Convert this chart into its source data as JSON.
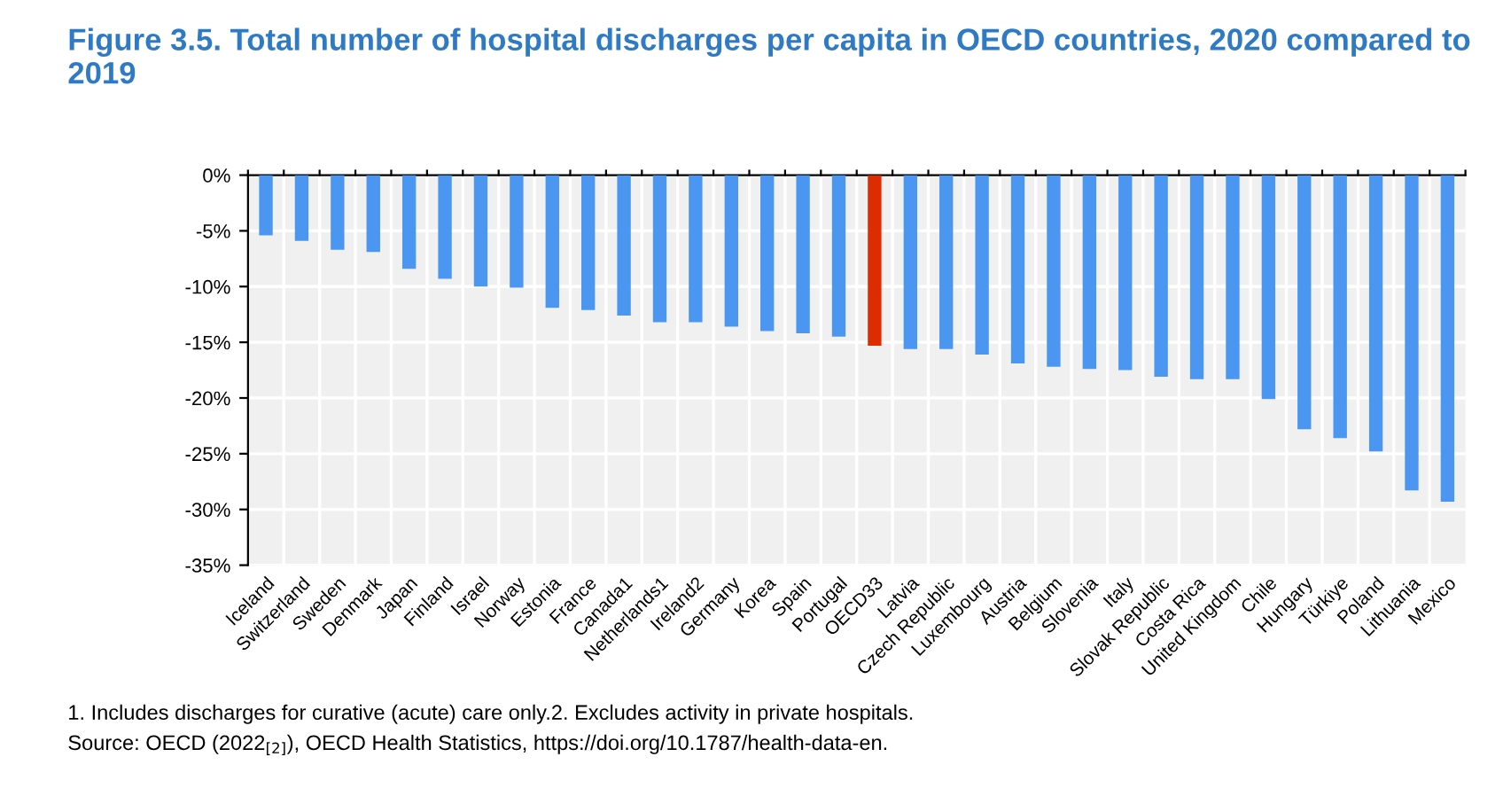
{
  "chart_data": {
    "type": "bar",
    "title": "Figure 3.5. Total number of hospital discharges per capita in OECD countries, 2020 compared to 2019",
    "categories": [
      "Iceland",
      "Switzerland",
      "Sweden",
      "Denmark",
      "Japan",
      "Finland",
      "Israel",
      "Norway",
      "Estonia",
      "France",
      "Canada1",
      "Netherlands1",
      "Ireland2",
      "Germany",
      "Korea",
      "Spain",
      "Portugal",
      "OECD33",
      "Latvia",
      "Czech Republic",
      "Luxembourg",
      "Austria",
      "Belgium",
      "Slovenia",
      "Italy",
      "Slovak Republic",
      "Costa Rica",
      "United Kingdom",
      "Chile",
      "Hungary",
      "Türkiye",
      "Poland",
      "Lithuania",
      "Mexico"
    ],
    "values": [
      -5.4,
      -5.9,
      -6.7,
      -6.9,
      -8.4,
      -9.3,
      -10.0,
      -10.1,
      -11.9,
      -12.1,
      -12.6,
      -13.2,
      -13.2,
      -13.6,
      -14.0,
      -14.2,
      -14.5,
      -15.3,
      -15.6,
      -15.6,
      -16.1,
      -16.9,
      -17.2,
      -17.4,
      -17.5,
      -18.1,
      -18.3,
      -18.3,
      -20.1,
      -22.8,
      -23.6,
      -24.8,
      -28.3,
      -29.3
    ],
    "colors": [
      "#4a96f0",
      "#4a96f0",
      "#4a96f0",
      "#4a96f0",
      "#4a96f0",
      "#4a96f0",
      "#4a96f0",
      "#4a96f0",
      "#4a96f0",
      "#4a96f0",
      "#4a96f0",
      "#4a96f0",
      "#4a96f0",
      "#4a96f0",
      "#4a96f0",
      "#4a96f0",
      "#4a96f0",
      "#dd2c00",
      "#4a96f0",
      "#4a96f0",
      "#4a96f0",
      "#4a96f0",
      "#4a96f0",
      "#4a96f0",
      "#4a96f0",
      "#4a96f0",
      "#4a96f0",
      "#4a96f0",
      "#4a96f0",
      "#4a96f0",
      "#4a96f0",
      "#4a96f0",
      "#4a96f0",
      "#4a96f0"
    ],
    "ylim": [
      -35,
      0
    ],
    "yticks": [
      {
        "value": 0,
        "label": "0%"
      },
      {
        "value": -5,
        "label": "-5%"
      },
      {
        "value": -10,
        "label": "-10%"
      },
      {
        "value": -15,
        "label": "-15%"
      },
      {
        "value": -20,
        "label": "-20%"
      },
      {
        "value": -25,
        "label": "-25%"
      },
      {
        "value": -30,
        "label": "-30%"
      },
      {
        "value": -35,
        "label": "-35%"
      }
    ],
    "grid": true,
    "annotations": [
      "1. Includes discharges for curative (acute) care only.2. Excludes activity in private hospitals.",
      "Source: OECD (2022$_{[2]}$), OECD Health Statistics, https://doi.org/10.1787/health-data-en."
    ]
  }
}
